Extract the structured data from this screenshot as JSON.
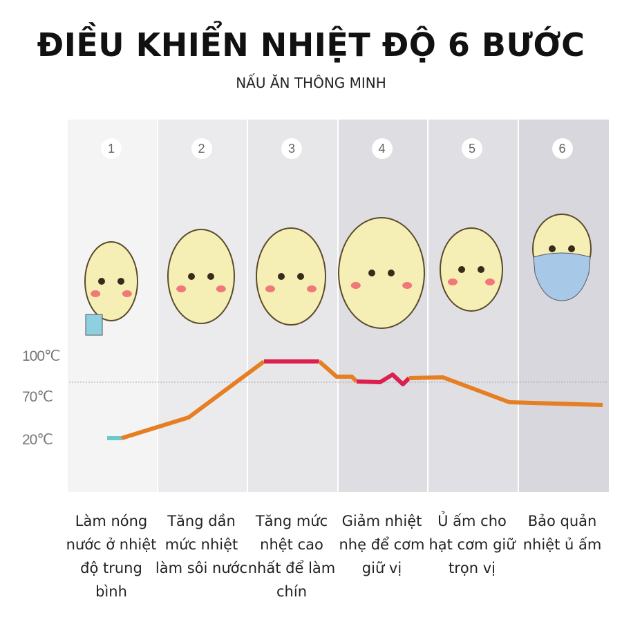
{
  "title": "ĐIỀU KHIỂN NHIỆT ĐỘ 6 BƯỚC",
  "subtitle": "NẤU ĂN THÔNG MINH",
  "y_labels": [
    "100℃",
    "70℃",
    "20℃"
  ],
  "steps": [
    {
      "number": "1",
      "description": "Làm nóng nước ở nhiệt độ trung bình"
    },
    {
      "number": "2",
      "description": "Tăng dần mức nhiệt làm sôi nước"
    },
    {
      "number": "3",
      "description": "Tăng mức nhệt cao nhất để làm chín"
    },
    {
      "number": "4",
      "description": "Giảm nhiệt nhẹ để cơm giữ vị"
    },
    {
      "number": "5",
      "description": "Ủ ấm cho hạt cơm giữ trọn vị"
    },
    {
      "number": "6",
      "description": "Bảo quản nhiệt ủ ấm"
    }
  ],
  "colors": {
    "line": "#e67e22",
    "peak": "#dc1f4f",
    "start": "#6cc9c9",
    "egg": "#f6efb5"
  }
}
